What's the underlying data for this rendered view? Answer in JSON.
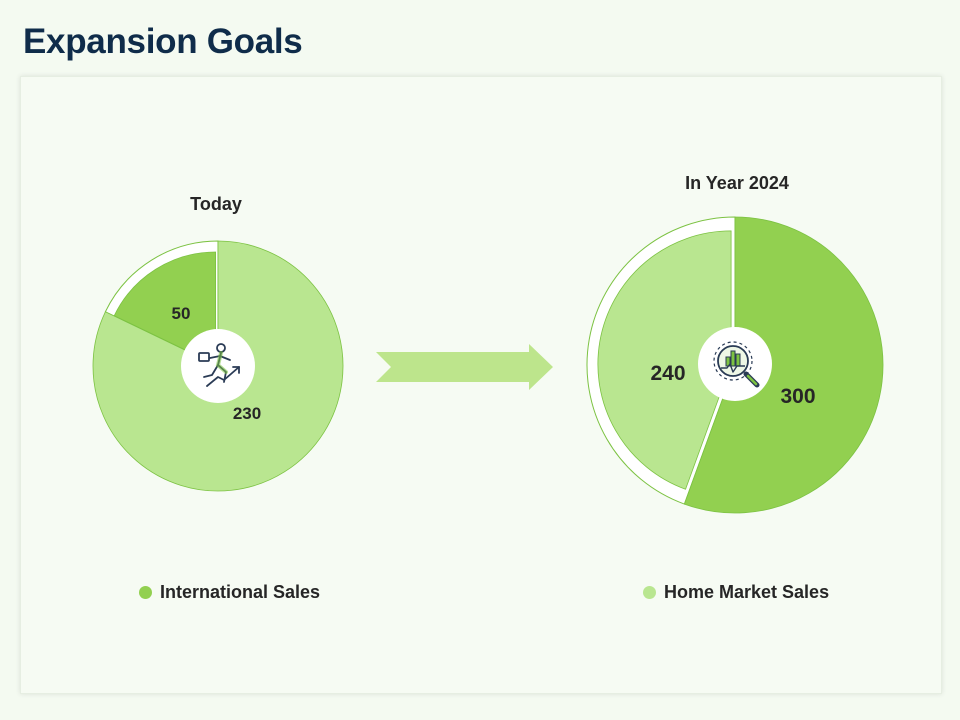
{
  "title": "Expansion Goals",
  "colors": {
    "international": "#92d050",
    "home": "#b9e690",
    "outline": "#7cc242",
    "arrow": "#bde58c",
    "icon": "#2a3b55",
    "icon_accent": "#7cc242"
  },
  "icons": [
    "business-growth-icon",
    "analytics-search-icon"
  ],
  "chart_data": [
    {
      "type": "pie",
      "title": "Today",
      "series": [
        {
          "name": "International Sales",
          "value": 50
        },
        {
          "name": "Home Market Sales",
          "value": 230
        }
      ]
    },
    {
      "type": "pie",
      "title": "In Year 2024",
      "series": [
        {
          "name": "Home Market Sales",
          "value": 240
        },
        {
          "name": "International Sales",
          "value": 300
        }
      ]
    }
  ],
  "legend": [
    {
      "label": "International Sales",
      "color": "#92d050"
    },
    {
      "label": "Home Market Sales",
      "color": "#b9e690"
    }
  ]
}
